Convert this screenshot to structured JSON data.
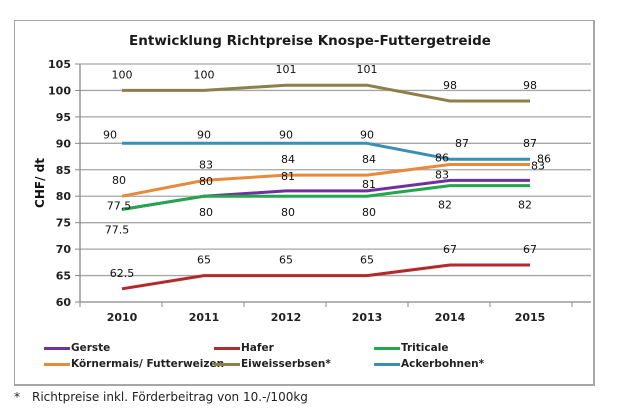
{
  "chart_data": {
    "type": "line",
    "title": "Entwicklung Richtpreise Knospe-Futtergetreide",
    "xlabel": "",
    "ylabel": "CHF/ dt",
    "ylim": [
      60,
      105
    ],
    "yticks": [
      60,
      65,
      70,
      75,
      80,
      85,
      90,
      95,
      100,
      105
    ],
    "grid": true,
    "legend_position": "bottom",
    "categories": [
      "2010",
      "2011",
      "2012",
      "2013",
      "2014",
      "2015"
    ],
    "series": [
      {
        "name": "Gerste",
        "color": "#7030a0",
        "values": [
          77.5,
          80,
          81,
          81,
          83,
          83
        ]
      },
      {
        "name": "Hafer",
        "color": "#b22a2a",
        "values": [
          62.5,
          65,
          65,
          65,
          67,
          67
        ]
      },
      {
        "name": "Triticale",
        "color": "#22a84a",
        "values": [
          77.5,
          80,
          80,
          80,
          82,
          82
        ]
      },
      {
        "name": "Körnermais/ Futterweizen",
        "color": "#e88a3c",
        "values": [
          80,
          83,
          84,
          84,
          86,
          86
        ]
      },
      {
        "name": "Eiweisserbsen*",
        "color": "#8c7f4a",
        "values": [
          100,
          100,
          101,
          101,
          98,
          98
        ]
      },
      {
        "name": "Ackerbohnen*",
        "color": "#3b8fb0",
        "values": [
          90,
          90,
          90,
          90,
          87,
          87
        ]
      }
    ],
    "data_labels": [
      {
        "series": "Eiweisserbsen*",
        "texts": [
          "100",
          "100",
          "101",
          "101",
          "98",
          "98"
        ]
      },
      {
        "series": "Ackerbohnen*",
        "texts": [
          "90",
          "90",
          "90",
          "90",
          "87",
          "87"
        ]
      },
      {
        "series": "Körnermais/ Futterweizen",
        "texts": [
          "80",
          "83",
          "84",
          "84",
          "86",
          "86"
        ]
      },
      {
        "series": "Gerste",
        "texts": [
          "77.5",
          "80",
          "81",
          "81",
          "83",
          "83"
        ]
      },
      {
        "series": "Triticale",
        "texts": [
          "77.5",
          "80",
          "80",
          "80",
          "82",
          "82"
        ]
      },
      {
        "series": "Hafer",
        "texts": [
          "62.5",
          "65",
          "65",
          "65",
          "67",
          "67"
        ]
      }
    ]
  },
  "footnote": {
    "marker": "*",
    "text": "Richtpreise inkl. Förderbeitrag von 10.-/100kg"
  }
}
